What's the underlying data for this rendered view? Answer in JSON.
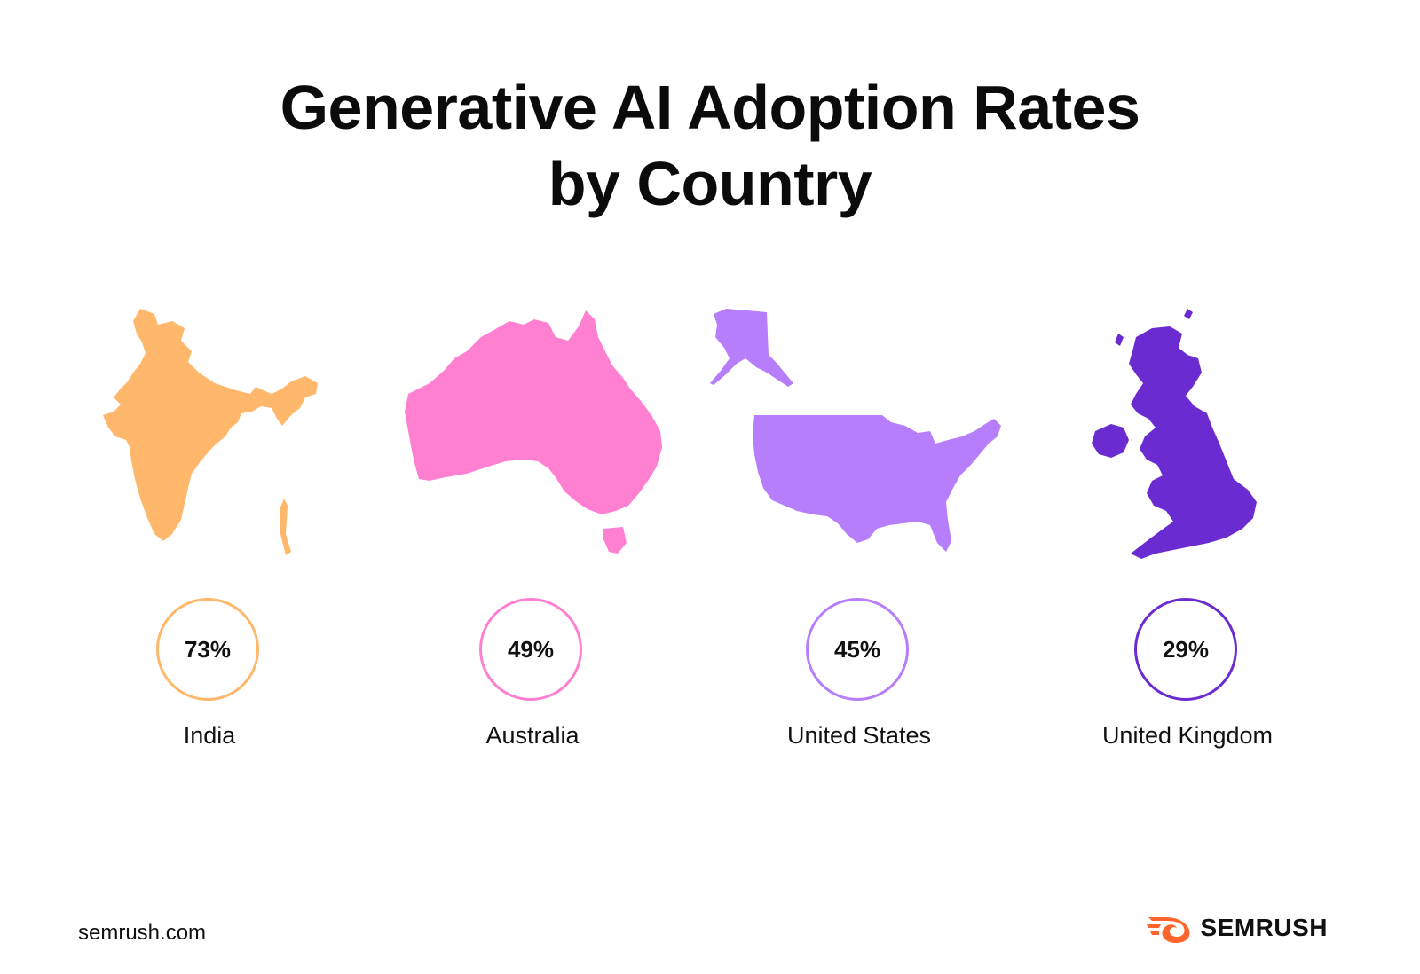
{
  "title": {
    "line1": "Generative AI Adoption Rates",
    "line2": "by Country"
  },
  "chart_data": {
    "type": "bar",
    "title": "Generative AI Adoption Rates by Country",
    "unit": "%",
    "categories": [
      "India",
      "Australia",
      "United States",
      "United Kingdom"
    ],
    "values": [
      73,
      49,
      45,
      29
    ],
    "labels": [
      "73%",
      "49%",
      "45%",
      "29%"
    ],
    "colors": [
      "#ffb76b",
      "#ff7fd1",
      "#b77efb",
      "#6a2cd0"
    ]
  },
  "map_icons": [
    "india-map-icon",
    "australia-map-icon",
    "united-states-map-icon",
    "united-kingdom-map-icon"
  ],
  "footer": {
    "url": "semrush.com",
    "brand": "SEMRUSH",
    "brand_color": "#ff642d"
  }
}
